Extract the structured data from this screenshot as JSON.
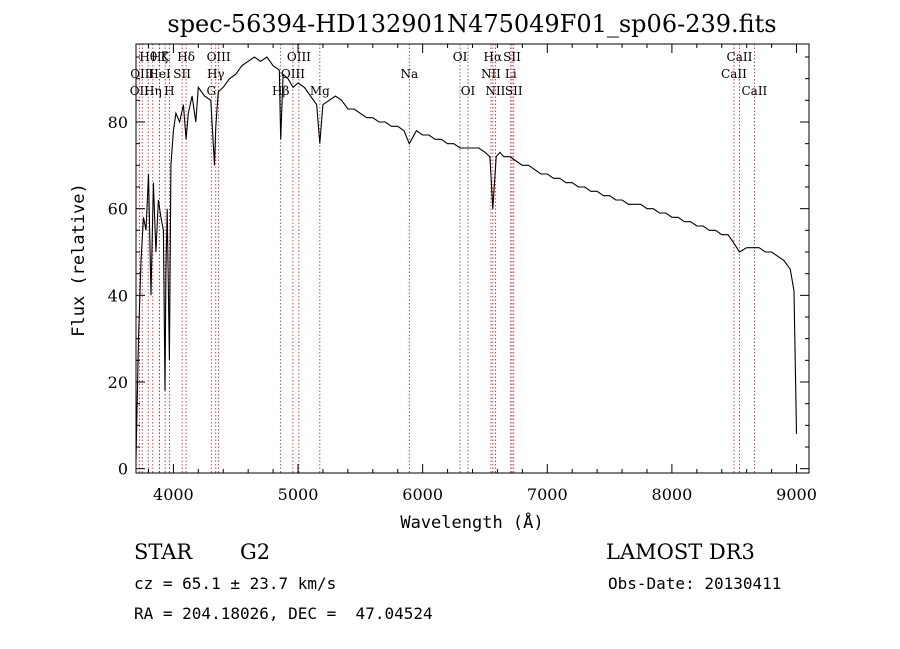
{
  "chart_data": {
    "type": "line",
    "title": "spec-56394-HD132901N475049F01_sp06-239.fits",
    "xlabel": "Wavelength (Å)",
    "ylabel": "Flux (relative)",
    "xlim": [
      3700,
      9100
    ],
    "ylim": [
      -1,
      98
    ],
    "xticks": [
      4000,
      5000,
      6000,
      7000,
      8000,
      9000
    ],
    "yticks": [
      0,
      20,
      40,
      60,
      80
    ],
    "grid": false,
    "series": [
      {
        "x": [
          3700,
          3720,
          3740,
          3760,
          3780,
          3800,
          3820,
          3840,
          3860,
          3880,
          3900,
          3920,
          3933,
          3940,
          3950,
          3968,
          3980,
          4000,
          4020,
          4050,
          4080,
          4102,
          4120,
          4150,
          4180,
          4200,
          4250,
          4300,
          4330,
          4340,
          4360,
          4400,
          4450,
          4500,
          4550,
          4600,
          4650,
          4700,
          4750,
          4800,
          4850,
          4861,
          4880,
          4920,
          4960,
          5000,
          5050,
          5100,
          5150,
          5175,
          5200,
          5250,
          5300,
          5350,
          5400,
          5450,
          5500,
          5550,
          5600,
          5650,
          5700,
          5750,
          5800,
          5850,
          5893,
          5950,
          6000,
          6050,
          6100,
          6150,
          6200,
          6250,
          6300,
          6350,
          6400,
          6450,
          6500,
          6540,
          6563,
          6590,
          6620,
          6650,
          6700,
          6750,
          6800,
          6850,
          6900,
          6950,
          7000,
          7050,
          7100,
          7150,
          7200,
          7250,
          7300,
          7350,
          7400,
          7450,
          7500,
          7550,
          7600,
          7650,
          7700,
          7750,
          7800,
          7850,
          7900,
          7950,
          8000,
          8050,
          8100,
          8150,
          8200,
          8250,
          8300,
          8350,
          8400,
          8450,
          8498,
          8542,
          8600,
          8662,
          8700,
          8750,
          8800,
          8850,
          8900,
          8950,
          8980,
          9000
        ],
        "values": [
          2,
          30,
          48,
          58,
          55,
          68,
          40,
          66,
          50,
          62,
          58,
          55,
          18,
          45,
          60,
          25,
          70,
          78,
          82,
          80,
          84,
          76,
          82,
          86,
          80,
          88,
          86,
          85,
          70,
          79,
          87,
          88,
          90,
          91,
          93,
          94,
          95,
          94,
          95,
          93,
          92,
          76,
          91,
          90,
          88,
          89,
          88,
          86,
          84,
          75,
          84,
          85,
          86,
          85,
          83,
          83,
          82,
          81,
          81,
          80,
          80,
          79,
          79,
          78,
          75,
          78,
          77,
          77,
          76,
          76,
          75,
          75,
          74,
          74,
          74,
          74,
          73,
          72,
          60,
          72,
          73,
          72,
          72,
          71,
          70,
          70,
          69,
          68,
          68,
          67,
          67,
          66,
          66,
          65,
          65,
          64,
          64,
          63,
          63,
          62,
          62,
          61,
          61,
          61,
          60,
          60,
          59,
          59,
          58,
          58,
          57,
          57,
          56,
          56,
          55,
          55,
          54,
          54,
          52,
          50,
          51,
          51,
          51,
          50,
          50,
          49,
          48,
          46,
          41,
          8
        ]
      }
    ],
    "lines": [
      {
        "x": 3727,
        "label": "OII",
        "row": 3
      },
      {
        "x": 3750,
        "label": "OIII",
        "row": 2
      },
      {
        "x": 3798,
        "label": "Hθ",
        "row": 1
      },
      {
        "x": 3835,
        "label": "Hη",
        "row": 3
      },
      {
        "x": 3889,
        "label": "Hζ",
        "row": 1
      },
      {
        "x": 3889,
        "label": "HeI",
        "row": 2
      },
      {
        "x": 3934,
        "label": "K",
        "row": 1
      },
      {
        "x": 3968,
        "label": "H",
        "row": 3
      },
      {
        "x": 4070,
        "label": "SII",
        "row": 2
      },
      {
        "x": 4102,
        "label": "Hδ",
        "row": 1
      },
      {
        "x": 4304,
        "label": "G",
        "row": 3
      },
      {
        "x": 4340,
        "label": "Hγ",
        "row": 2
      },
      {
        "x": 4363,
        "label": "OIII",
        "row": 1
      },
      {
        "x": 4861,
        "label": "Hβ",
        "row": 3
      },
      {
        "x": 4959,
        "label": "OIII",
        "row": 2
      },
      {
        "x": 5007,
        "label": "OIII",
        "row": 1
      },
      {
        "x": 5175,
        "label": "Mg",
        "row": 3
      },
      {
        "x": 5893,
        "label": "Na",
        "row": 2
      },
      {
        "x": 6300,
        "label": "OI",
        "row": 1
      },
      {
        "x": 6364,
        "label": "OI",
        "row": 3
      },
      {
        "x": 6548,
        "label": "NII",
        "row": 2
      },
      {
        "x": 6563,
        "label": "Hα",
        "row": 1
      },
      {
        "x": 6584,
        "label": "NII",
        "row": 3
      },
      {
        "x": 6707,
        "label": "Li",
        "row": 2
      },
      {
        "x": 6717,
        "label": "SII",
        "row": 1
      },
      {
        "x": 6731,
        "label": "SII",
        "row": 3
      },
      {
        "x": 8498,
        "label": "CaII",
        "row": 2
      },
      {
        "x": 8542,
        "label": "CaII",
        "row": 1
      },
      {
        "x": 8662,
        "label": "CaII",
        "row": 3
      }
    ]
  },
  "info": {
    "object_class": "STAR",
    "subclass": "G2",
    "survey": "LAMOST DR3",
    "redshift": "cz = 65.1 ± 23.7 km/s",
    "obs_date": "Obs-Date: 20130411",
    "coords": "RA = 204.18026, DEC =  47.04524"
  },
  "colors": {
    "spectrum": "#000000",
    "line_markers": "#b22222",
    "axes": "#000000"
  }
}
